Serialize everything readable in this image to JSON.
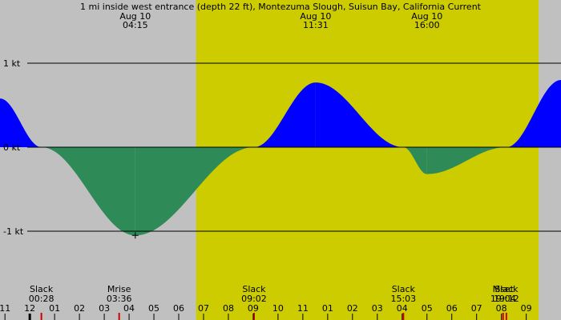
{
  "chart_data": {
    "type": "area",
    "title": "1 mi inside west entrance (depth 22 ft), Montezuma Slough, Suisun Bay, California Current",
    "ylabel_unit": "kt",
    "ylim": [
      -1.9,
      1.9
    ],
    "y_ticks": [
      {
        "value": 1,
        "label": "1 kt"
      },
      {
        "value": 0,
        "label": "0 kt"
      },
      {
        "value": -1,
        "label": "-1 kt"
      }
    ],
    "x_range_hours": [
      -1.2,
      21.4
    ],
    "daylight_hours": [
      6.7,
      20.5
    ],
    "x_ticks": [
      {
        "hour": -1,
        "label": "11"
      },
      {
        "hour": 0,
        "label": "12"
      },
      {
        "hour": 1,
        "label": "01"
      },
      {
        "hour": 2,
        "label": "02"
      },
      {
        "hour": 3,
        "label": "03"
      },
      {
        "hour": 4,
        "label": "04"
      },
      {
        "hour": 5,
        "label": "05"
      },
      {
        "hour": 6,
        "label": "06"
      },
      {
        "hour": 7,
        "label": "07"
      },
      {
        "hour": 8,
        "label": "08"
      },
      {
        "hour": 9,
        "label": "09"
      },
      {
        "hour": 10,
        "label": "10"
      },
      {
        "hour": 11,
        "label": "11"
      },
      {
        "hour": 12,
        "label": "01"
      },
      {
        "hour": 13,
        "label": "02"
      },
      {
        "hour": 14,
        "label": "03"
      },
      {
        "hour": 15,
        "label": "04"
      },
      {
        "hour": 16,
        "label": "05"
      },
      {
        "hour": 17,
        "label": "06"
      },
      {
        "hour": 18,
        "label": "07"
      },
      {
        "hour": 19,
        "label": "08"
      },
      {
        "hour": 20,
        "label": "09"
      }
    ],
    "top_events": [
      {
        "date": "Aug 10",
        "time": "04:15",
        "hour": 4.25
      },
      {
        "date": "Aug 10",
        "time": "11:31",
        "hour": 11.517
      },
      {
        "date": "Aug 10",
        "time": "16:00",
        "hour": 16.0
      }
    ],
    "bottom_events": [
      {
        "label": "Slack",
        "time": "00:28",
        "hour": 0.467
      },
      {
        "label": "Mrise",
        "time": "03:36",
        "hour": 3.6
      },
      {
        "label": "Slack",
        "time": "09:02",
        "hour": 9.033
      },
      {
        "label": "Slack",
        "time": "15:03",
        "hour": 15.05
      },
      {
        "label": "Mset",
        "time": "19:04",
        "hour": 19.067
      },
      {
        "label": "Slack",
        "time": "19:12",
        "hour": 19.2
      }
    ],
    "current_points": [
      {
        "hour": -1.2,
        "kt": 0.58
      },
      {
        "hour": 0.467,
        "kt": 0
      },
      {
        "hour": 4.25,
        "kt": -1.05
      },
      {
        "hour": 9.033,
        "kt": 0
      },
      {
        "hour": 11.517,
        "kt": 0.77
      },
      {
        "hour": 15.05,
        "kt": 0
      },
      {
        "hour": 16.0,
        "kt": -0.32
      },
      {
        "hour": 19.2,
        "kt": 0
      },
      {
        "hour": 21.4,
        "kt": 0.8
      }
    ],
    "marker": {
      "hour": 4.25,
      "kt": -1.05
    },
    "colors": {
      "background": "#c0c0c0",
      "daylight": "#cccc00",
      "flood": "#0000ff",
      "ebb": "#2e8b57",
      "grid": "#000000",
      "tick_red": "#cc0000"
    }
  }
}
